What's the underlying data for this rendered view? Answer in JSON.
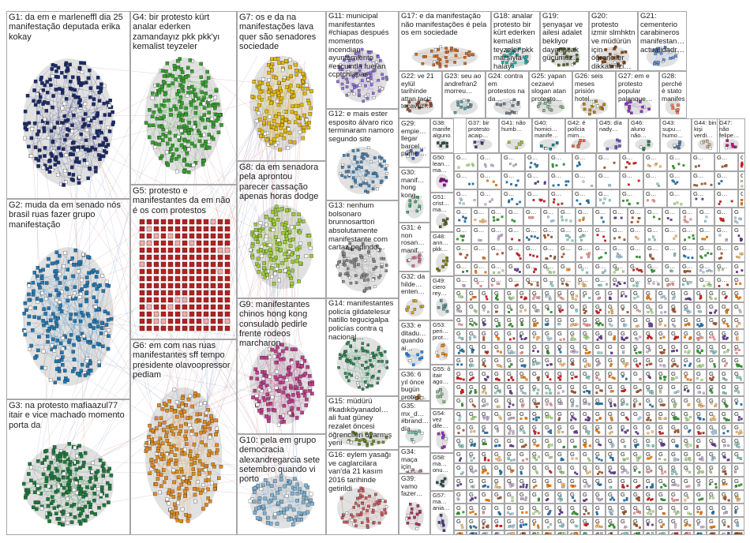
{
  "groups": [
    {
      "id": "G1",
      "text": "G1: da em e marleneffl dia 25 manifestação deputada erika kokay",
      "color": "#1a2a6c"
    },
    {
      "id": "G2",
      "text": "G2: muda da em senado nós brasil ruas fazer grupo manifestação",
      "color": "#1f78b4"
    },
    {
      "id": "G3",
      "text": "G3: na protesto mafiaazul77 itair e vice machado momento porta da",
      "color": "#1b7a3a"
    },
    {
      "id": "G4",
      "text": "G4: bir protesto kürt analar ederken zamandayız pkk pkk'yı kemalist teyzeler",
      "color": "#33a02c"
    },
    {
      "id": "G5",
      "text": "G5: protesto e manifestantes da em não é os com protestos",
      "color": "#b22222"
    },
    {
      "id": "G6",
      "text": "G6: em com nas ruas manifestantes sff tempo presidente olavoopressor pediam",
      "color": "#e08a1e"
    },
    {
      "id": "G7",
      "text": "G7: os e da na manifestações lava quer são senadores sociedade",
      "color": "#e6b800"
    },
    {
      "id": "G8",
      "text": "G8: da em senadora pela aprontou parecer cassação apenas horas dodge",
      "color": "#9acd32"
    },
    {
      "id": "G9",
      "text": "G9: manifestantes chinos hong kong consulado pedirle frente rodeos marcharon",
      "color": "#c03c8c"
    },
    {
      "id": "G10",
      "text": "G10: pela em grupo democracia alexandregarcia sete setembro quando vi porto",
      "color": "#7fb3d5"
    },
    {
      "id": "G11",
      "text": "G11: municipal manifestantes #chiapas después momentos incendian ayuntamiento #escuintla fueran ccptchiapas",
      "color": "#9370db"
    },
    {
      "id": "G12",
      "text": "G12: e mais ester esposito álvaro rico terminaram namoro segundo site",
      "color": "#4682b4"
    },
    {
      "id": "G13",
      "text": "G13: nenhum bolsonaro brunnosarttori absolutamente manifestante com cartaz pedindo…",
      "color": "#8a8a8a"
    },
    {
      "id": "G14",
      "text": "G14: manifestantes policía gildatelesur hatillo tegucigalpa policías contra q nacional…",
      "color": "#2e8b57"
    },
    {
      "id": "G15",
      "text": "G15: müdürü #kadıköyanadol… ali fuat güney rezalet öncesi öğrencileri uyarmış yeni",
      "color": "#6b8e23"
    },
    {
      "id": "G16",
      "text": "G16: eylem yasağı ve caglarcilara van'da 21 kasım 2016 tarihinde getirildi",
      "color": "#cd5c5c"
    },
    {
      "id": "G17",
      "text": "G17: e da manifestação não manifestações é pela os em sociedade",
      "color": "#d2691e"
    },
    {
      "id": "G18",
      "text": "G18: analar protesto bir kürt ederken kemalist teyzeler pkk marşıyla halay",
      "color": "#20b2aa"
    },
    {
      "id": "G19",
      "text": "G19: şenyaşar ve ailesi adalet bekliyor dayanacak gücümüz…",
      "color": "#556b2f"
    },
    {
      "id": "G20",
      "text": "G20: protesto izmir slmhktn ve müdürün için öğrenciler dikkatinizi…",
      "color": "#8b4513"
    },
    {
      "id": "G21",
      "text": "G21: cementerio carabineros manifestan… actualidadr…",
      "color": "#6495ed"
    },
    {
      "id": "G22",
      "text": "G22: ve 21 eylül tarihinde attan taciz tecavüz…",
      "color": "#a0522d"
    },
    {
      "id": "G23",
      "text": "G23: seu ao andrefran2 morreu…",
      "color": "#5f9ea0"
    },
    {
      "id": "G24",
      "text": "G24: contra em protestos na da…",
      "color": "#708090"
    },
    {
      "id": "G25",
      "text": "G25: yapan cezaevi slogan atan protesto…",
      "color": "#8fbc8f"
    },
    {
      "id": "G26",
      "text": "G26: seis meses prisión hotel…",
      "color": "#b8860b"
    },
    {
      "id": "G27",
      "text": "G27: em e protesto popular palanque…",
      "color": "#9932cc"
    },
    {
      "id": "G28",
      "text": "G28: perché è stato manifes…",
      "color": "#ff7f50"
    },
    {
      "id": "G29",
      "text": "G29: empie… llegar barcel… primer…",
      "color": "#4169e1"
    },
    {
      "id": "G30",
      "text": "G30: manif… hong kong…",
      "color": "#3cb371"
    },
    {
      "id": "G31",
      "text": "G31: è non rosan… manif…",
      "color": "#db7093"
    },
    {
      "id": "G32",
      "text": "G32: da hilde… enten…",
      "color": "#daa520"
    },
    {
      "id": "G33",
      "text": "G33: e ditadu… quando ai…",
      "color": "#1e90ff"
    },
    {
      "id": "G34",
      "text": "G34: maça için erkek…",
      "color": "#bc8f8f"
    },
    {
      "id": "G35",
      "text": "G35: mx_d… #brand… día…",
      "color": "#66cdaa"
    },
    {
      "id": "G36",
      "text": "G36: 6 yıl önce bugün protes…",
      "color": "#cd853f"
    },
    {
      "id": "G37",
      "text": "G37: bir protesto acaip…",
      "color": "#483d8b"
    },
    {
      "id": "G38",
      "text": "G38: manife… alguno…",
      "color": "#2f4f4f"
    },
    {
      "id": "G39",
      "text": "G39: vamo fazer…",
      "color": "#b03060"
    },
    {
      "id": "G40",
      "text": "G40: homici… manife…",
      "color": "#008b8b"
    },
    {
      "id": "G41",
      "text": "G41: não humb…",
      "color": "#9acd32"
    },
    {
      "id": "G42",
      "text": "G42: é polícia mim…",
      "color": "#ff6347"
    },
    {
      "id": "G43",
      "text": "G43: supu… humo…",
      "color": "#4682b4"
    },
    {
      "id": "G44",
      "text": "G44: bin kişi verdi…",
      "color": "#d2b48c"
    },
    {
      "id": "G45",
      "text": "G45: día nady…",
      "color": "#6a5acd"
    },
    {
      "id": "G46",
      "text": "G46: aluno não…",
      "color": "#2e8b57"
    },
    {
      "id": "G47",
      "text": "G47: não felipe…",
      "color": "#c71585"
    },
    {
      "id": "G48",
      "text": "G48: ann… pkk…",
      "color": "#808000"
    },
    {
      "id": "G49",
      "text": "G49: ciero rey…",
      "color": "#5f9ea0"
    },
    {
      "id": "G50",
      "text": "G50: lean… ma…",
      "color": "#8b008b"
    },
    {
      "id": "G51",
      "text": "G51: crist… ma…",
      "color": "#556b2f"
    },
    {
      "id": "G53",
      "text": "G53: peri… prot…",
      "color": "#ff8c00"
    },
    {
      "id": "G54",
      "text": "G54: vez dife…",
      "color": "#9932cc"
    },
    {
      "id": "G55",
      "text": "G55: ô itair ago…",
      "color": "#8fbc8f"
    },
    {
      "id": "G57",
      "text": "G57: ma… ania…",
      "color": "#483d8b"
    },
    {
      "id": "G58",
      "text": "G58: ma… onu…",
      "color": "#2f4f4f"
    }
  ],
  "small_panel_label": "G…",
  "tiny_panel_label": "G"
}
